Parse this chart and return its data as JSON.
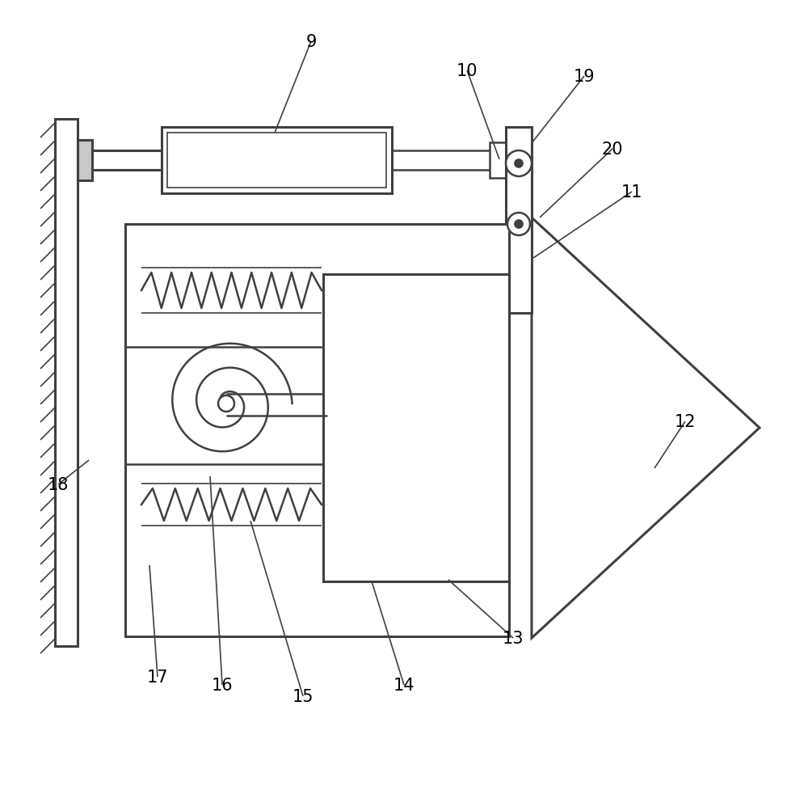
{
  "background_color": "#ffffff",
  "line_color": "#404040",
  "lw": 1.8,
  "lw_thick": 2.2,
  "lw_thin": 1.2,
  "fs": 15
}
